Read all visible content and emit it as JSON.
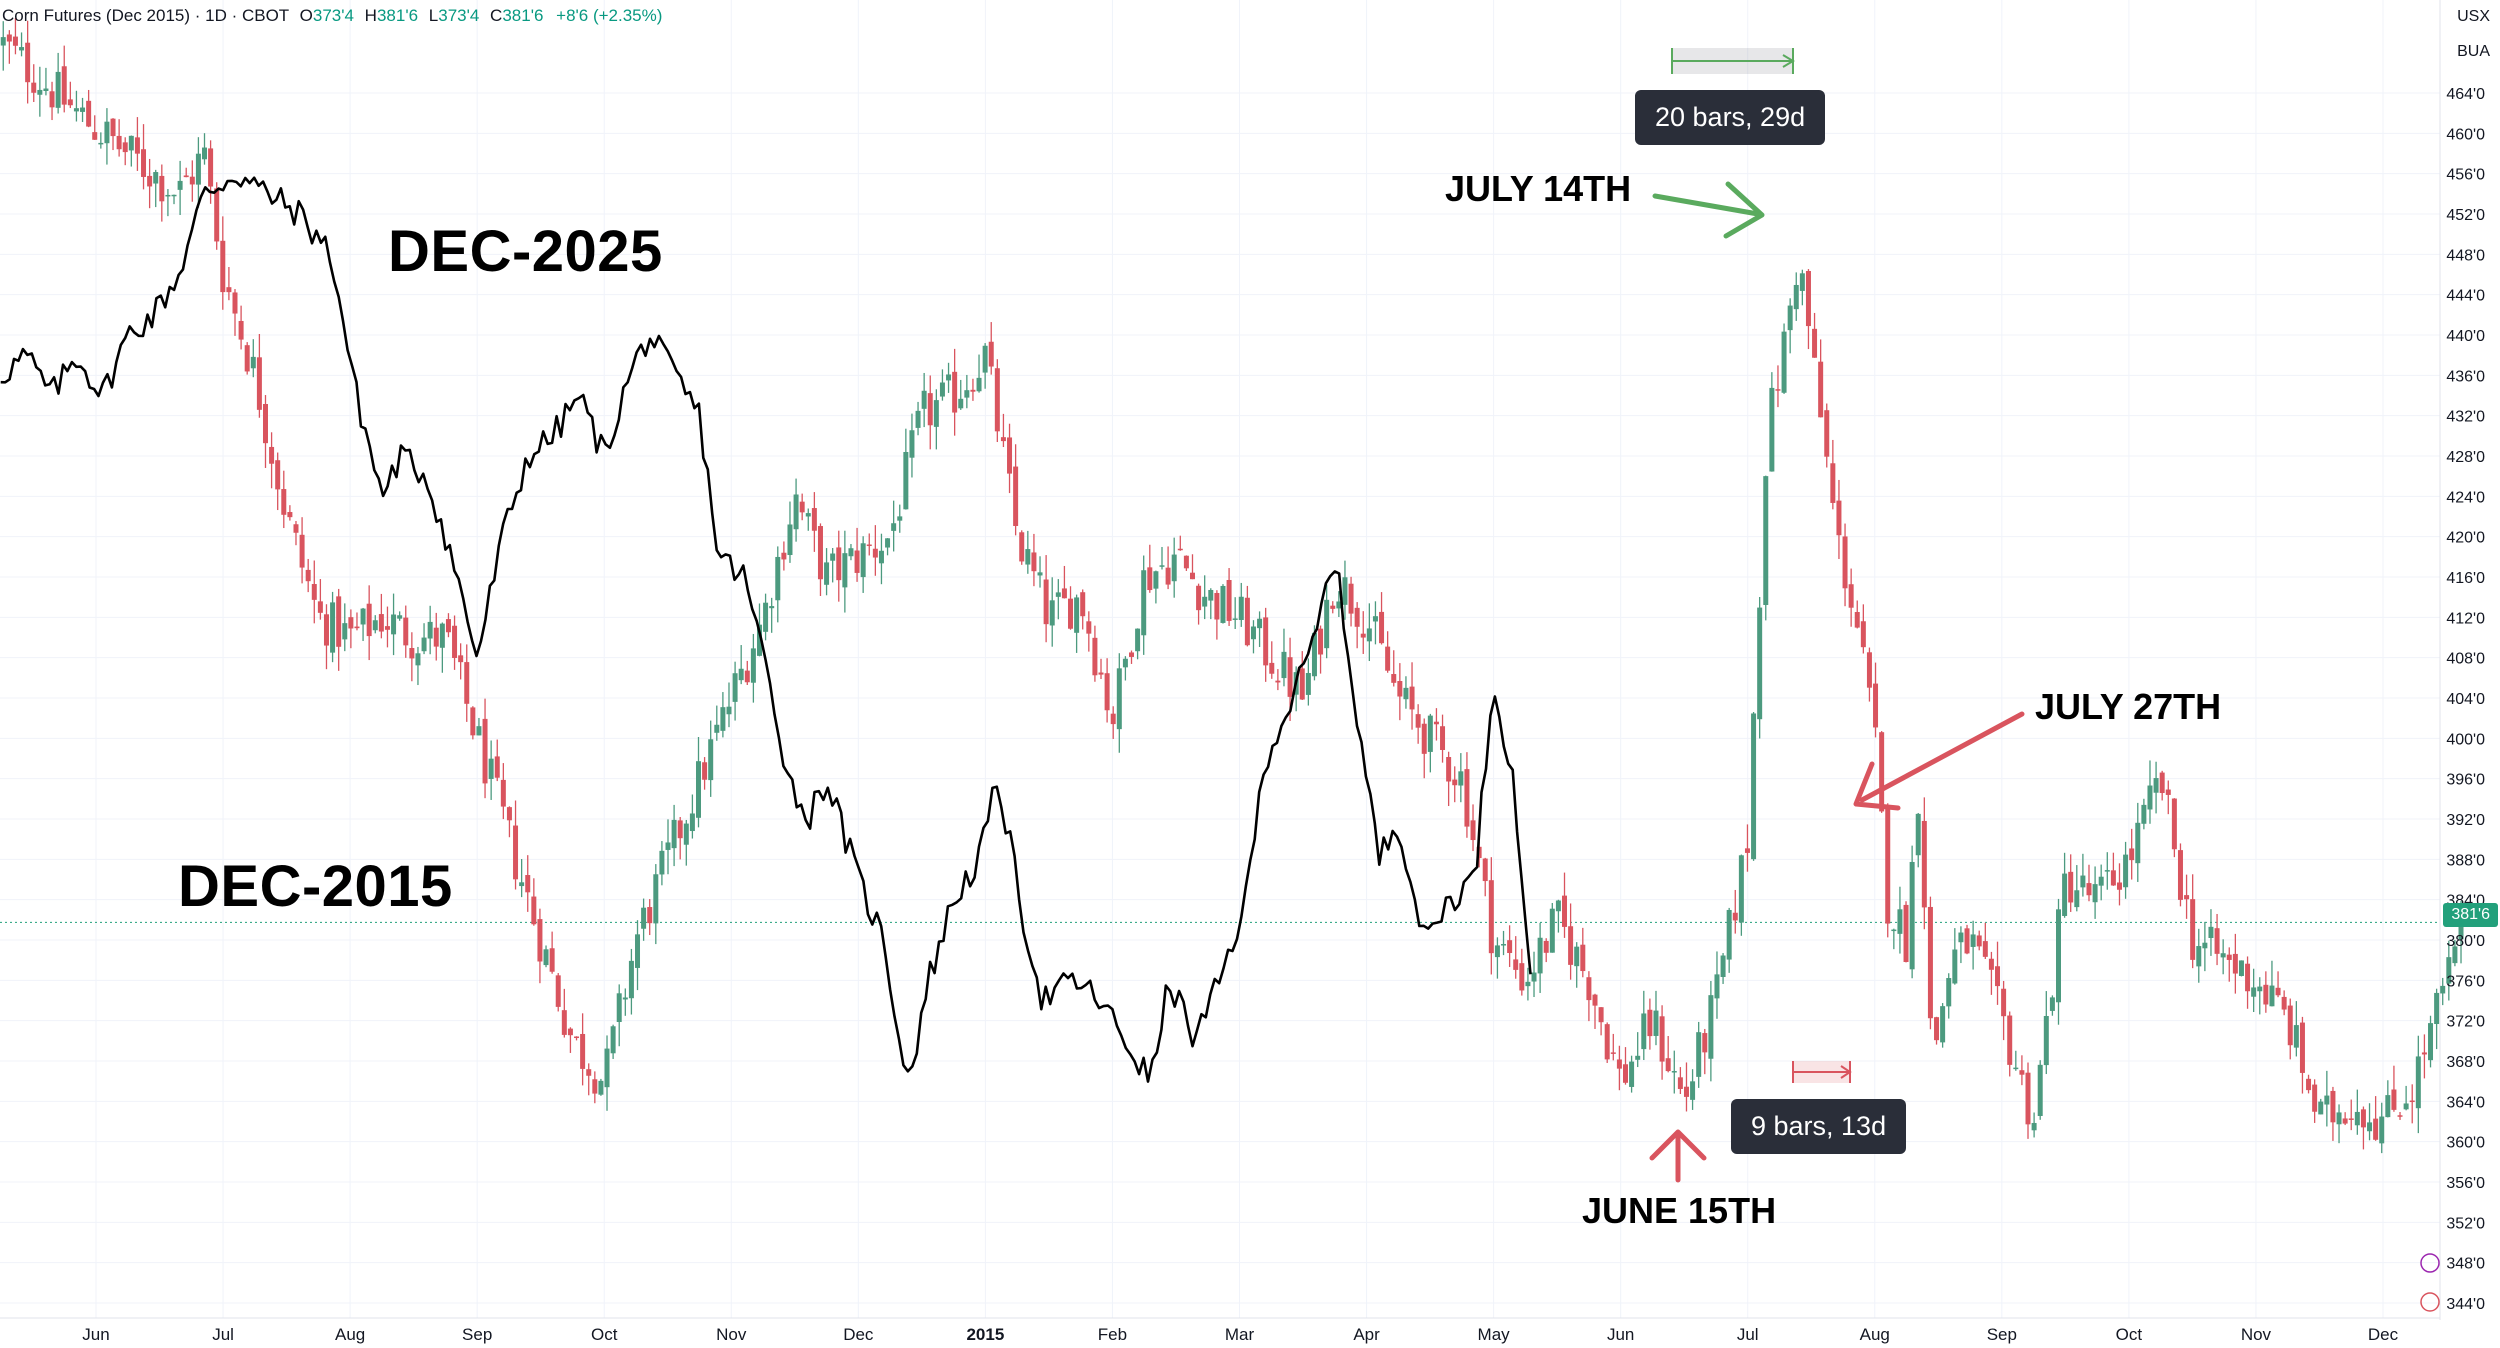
{
  "header": {
    "symbol": "Corn Futures (Dec 2015) · 1D · CBOT",
    "o_label": "O",
    "o_value": "373'4",
    "h_label": "H",
    "h_value": "381'6",
    "l_label": "L",
    "l_value": "373'4",
    "c_label": "C",
    "c_value": "381'6",
    "change": "+8'6 (+2.35%)"
  },
  "currency": "USX",
  "unit": "BUA",
  "current_price": "381'6",
  "colors": {
    "up": "#4c9a7f",
    "down": "#d9545e",
    "line": "#000000",
    "green_arrow": "#5aaa5e",
    "red_arrow": "#d9545e"
  },
  "labels": {
    "dec_2025": "DEC-2025",
    "dec_2015": "DEC-2015",
    "july_14": "JULY 14TH",
    "july_27": "JULY 27TH",
    "june_15": "JUNE 15TH"
  },
  "measures": {
    "top": "20 bars, 29d",
    "bottom": "9 bars, 13d"
  },
  "chart_data": {
    "type": "candlestick",
    "title": "Corn Futures (Dec 2015) · 1D · CBOT",
    "y_range": [
      342,
      468
    ],
    "y_ticks": [
      "464'0",
      "460'0",
      "456'0",
      "452'0",
      "448'0",
      "444'0",
      "440'0",
      "436'0",
      "432'0",
      "428'0",
      "424'0",
      "420'0",
      "416'0",
      "412'0",
      "408'0",
      "404'0",
      "400'0",
      "396'0",
      "392'0",
      "388'0",
      "384'0",
      "380'0",
      "376'0",
      "372'0",
      "368'0",
      "364'0",
      "360'0",
      "356'0",
      "352'0",
      "348'0",
      "344'0"
    ],
    "y_tick_values": [
      464,
      460,
      456,
      452,
      448,
      444,
      440,
      436,
      432,
      428,
      424,
      420,
      416,
      412,
      408,
      404,
      400,
      396,
      392,
      388,
      384,
      380,
      376,
      372,
      368,
      364,
      360,
      356,
      352,
      348,
      344
    ],
    "x_range": [
      0,
      20.4
    ],
    "x_ticks": [
      {
        "label": "Jun",
        "pos": 0.75
      },
      {
        "label": "Jul",
        "pos": 1.75
      },
      {
        "label": "Aug",
        "pos": 2.75
      },
      {
        "label": "Sep",
        "pos": 3.75
      },
      {
        "label": "Oct",
        "pos": 4.75
      },
      {
        "label": "Nov",
        "pos": 5.75
      },
      {
        "label": "Dec",
        "pos": 6.75
      },
      {
        "label": "2015",
        "pos": 7.75,
        "bold": true
      },
      {
        "label": "Feb",
        "pos": 8.75
      },
      {
        "label": "Mar",
        "pos": 9.75
      },
      {
        "label": "Apr",
        "pos": 10.75
      },
      {
        "label": "May",
        "pos": 11.75
      },
      {
        "label": "Jun",
        "pos": 12.75
      },
      {
        "label": "Jul",
        "pos": 13.75
      },
      {
        "label": "Aug",
        "pos": 14.75
      },
      {
        "label": "Sep",
        "pos": 15.75
      },
      {
        "label": "Oct",
        "pos": 16.75
      },
      {
        "label": "Nov",
        "pos": 17.75
      },
      {
        "label": "Dec",
        "pos": 18.75
      }
    ],
    "series": [
      {
        "name": "Dec 2015 candles (close path)",
        "style": "candlestick",
        "points": [
          [
            0.0,
            469
          ],
          [
            0.6,
            462
          ],
          [
            1.0,
            458
          ],
          [
            1.4,
            454
          ],
          [
            1.6,
            458
          ],
          [
            1.75,
            446
          ],
          [
            2.0,
            436
          ],
          [
            2.25,
            422
          ],
          [
            2.5,
            412
          ],
          [
            2.75,
            410
          ],
          [
            3.0,
            412
          ],
          [
            3.25,
            410
          ],
          [
            3.5,
            410
          ],
          [
            3.75,
            400
          ],
          [
            4.0,
            390
          ],
          [
            4.25,
            380
          ],
          [
            4.5,
            370
          ],
          [
            4.75,
            366
          ],
          [
            5.0,
            380
          ],
          [
            5.25,
            388
          ],
          [
            5.5,
            396
          ],
          [
            5.75,
            404
          ],
          [
            6.0,
            412
          ],
          [
            6.25,
            424
          ],
          [
            6.5,
            416
          ],
          [
            6.75,
            418
          ],
          [
            7.0,
            420
          ],
          [
            7.25,
            432
          ],
          [
            7.5,
            434
          ],
          [
            7.75,
            438
          ],
          [
            8.0,
            420
          ],
          [
            8.25,
            412
          ],
          [
            8.5,
            414
          ],
          [
            8.75,
            402
          ],
          [
            9.0,
            416
          ],
          [
            9.25,
            418
          ],
          [
            9.5,
            414
          ],
          [
            9.75,
            412
          ],
          [
            10.0,
            408
          ],
          [
            10.25,
            404
          ],
          [
            10.5,
            416
          ],
          [
            10.75,
            412
          ],
          [
            11.0,
            404
          ],
          [
            11.25,
            400
          ],
          [
            11.5,
            396
          ],
          [
            11.75,
            380
          ],
          [
            12.0,
            376
          ],
          [
            12.25,
            382
          ],
          [
            12.5,
            376
          ],
          [
            12.75,
            366
          ],
          [
            13.0,
            372
          ],
          [
            13.25,
            364
          ],
          [
            13.5,
            374
          ],
          [
            13.75,
            390
          ],
          [
            13.9,
            430
          ],
          [
            14.05,
            440
          ],
          [
            14.15,
            448
          ],
          [
            14.3,
            434
          ],
          [
            14.45,
            420
          ],
          [
            14.6,
            412
          ],
          [
            14.75,
            400
          ],
          [
            14.85,
            384
          ],
          [
            15.0,
            380
          ],
          [
            15.1,
            396
          ],
          [
            15.2,
            368
          ],
          [
            15.35,
            378
          ],
          [
            15.5,
            380
          ],
          [
            15.75,
            372
          ],
          [
            16.0,
            362
          ],
          [
            16.25,
            386
          ],
          [
            16.5,
            384
          ],
          [
            16.75,
            388
          ],
          [
            17.0,
            396
          ],
          [
            17.25,
            380
          ],
          [
            17.5,
            378
          ],
          [
            17.75,
            376
          ],
          [
            18.0,
            372
          ],
          [
            18.25,
            362
          ],
          [
            18.5,
            364
          ],
          [
            18.75,
            362
          ],
          [
            19.0,
            366
          ],
          [
            19.25,
            376
          ],
          [
            19.4,
            381.75
          ]
        ]
      },
      {
        "name": "DEC-2025 overlay",
        "style": "line",
        "points": [
          [
            0.0,
            436
          ],
          [
            0.2,
            438
          ],
          [
            0.4,
            434
          ],
          [
            0.6,
            438
          ],
          [
            0.8,
            434
          ],
          [
            1.0,
            440
          ],
          [
            1.2,
            442
          ],
          [
            1.4,
            446
          ],
          [
            1.6,
            454
          ],
          [
            1.85,
            456
          ],
          [
            2.1,
            454
          ],
          [
            2.35,
            452
          ],
          [
            2.6,
            448
          ],
          [
            2.8,
            434
          ],
          [
            3.0,
            424
          ],
          [
            3.15,
            428
          ],
          [
            3.35,
            426
          ],
          [
            3.55,
            418
          ],
          [
            3.75,
            408
          ],
          [
            3.95,
            420
          ],
          [
            4.15,
            428
          ],
          [
            4.35,
            430
          ],
          [
            4.55,
            434
          ],
          [
            4.75,
            428
          ],
          [
            4.95,
            436
          ],
          [
            5.1,
            440
          ],
          [
            5.3,
            436
          ],
          [
            5.5,
            432
          ],
          [
            5.65,
            418
          ],
          [
            5.85,
            416
          ],
          [
            6.05,
            406
          ],
          [
            6.2,
            396
          ],
          [
            6.35,
            392
          ],
          [
            6.5,
            396
          ],
          [
            6.75,
            386
          ],
          [
            6.95,
            380
          ],
          [
            7.05,
            372
          ],
          [
            7.15,
            366
          ],
          [
            7.3,
            376
          ],
          [
            7.5,
            384
          ],
          [
            7.7,
            388
          ],
          [
            7.85,
            396
          ],
          [
            8.05,
            382
          ],
          [
            8.2,
            374
          ],
          [
            8.45,
            376
          ],
          [
            8.65,
            374
          ],
          [
            8.85,
            370
          ],
          [
            9.05,
            366
          ],
          [
            9.2,
            376
          ],
          [
            9.4,
            370
          ],
          [
            9.6,
            376
          ],
          [
            9.8,
            384
          ],
          [
            9.95,
            398
          ],
          [
            10.1,
            402
          ],
          [
            10.3,
            408
          ],
          [
            10.5,
            418
          ],
          [
            10.7,
            400
          ],
          [
            10.85,
            388
          ],
          [
            11.0,
            392
          ],
          [
            11.2,
            380
          ],
          [
            11.4,
            384
          ],
          [
            11.6,
            386
          ],
          [
            11.75,
            406
          ],
          [
            11.9,
            396
          ],
          [
            12.05,
            376
          ]
        ]
      }
    ],
    "annotations": [
      {
        "label": "JULY 14TH",
        "x": 14.15,
        "y": 452
      },
      {
        "label": "JULY 27TH",
        "x": 14.7,
        "y": 393
      },
      {
        "label": "JUNE 15TH",
        "x": 13.15,
        "y": 362
      },
      {
        "label": "DEC-2025",
        "series": "overlay"
      },
      {
        "label": "DEC-2015",
        "series": "candles"
      }
    ],
    "measurements": [
      {
        "label": "20 bars, 29d",
        "from_x": 13.25,
        "to_x": 14.2,
        "y": 467
      },
      {
        "label": "9 bars, 13d",
        "from_x": 14.3,
        "to_x": 14.75,
        "y": 367
      }
    ]
  }
}
